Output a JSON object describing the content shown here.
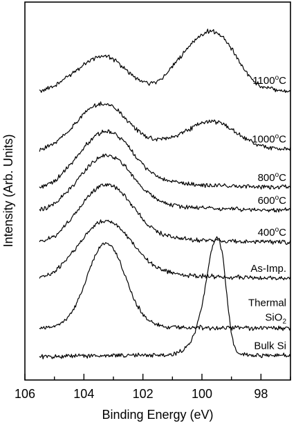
{
  "chart_data": {
    "type": "line",
    "xlabel": "Binding Energy (eV)",
    "ylabel": "Intensity (Arb. Units)",
    "xlim": [
      106,
      97
    ],
    "x_direction": "reversed",
    "x_ticks": [
      "106",
      "104",
      "102",
      "100",
      "98"
    ],
    "x_tick_values": [
      106,
      104,
      102,
      100,
      98
    ],
    "y_ticks": "none",
    "grid": false,
    "legend": "none",
    "curve_labels_placement": "right-of-curve",
    "series": [
      {
        "name": "1100",
        "label_main": "1100",
        "label_degree": "o",
        "label_tail": "C",
        "offset": 7.0,
        "x": [
          105.5,
          105,
          104.5,
          104,
          103.8,
          103.6,
          103.4,
          103.2,
          103,
          102.8,
          102.6,
          102.4,
          102.2,
          102,
          101.8,
          101.6,
          101.4,
          101.2,
          101,
          100.8,
          100.6,
          100.4,
          100.2,
          100,
          99.8,
          99.6,
          99.4,
          99.2,
          99,
          98.8,
          98.6,
          98.4,
          98.2,
          98,
          97.6,
          97.2,
          97
        ],
        "y": [
          0.05,
          0.18,
          0.45,
          0.76,
          0.86,
          0.93,
          0.97,
          0.95,
          0.88,
          0.77,
          0.63,
          0.49,
          0.37,
          0.29,
          0.26,
          0.28,
          0.36,
          0.5,
          0.68,
          0.88,
          1.08,
          1.27,
          1.43,
          1.55,
          1.62,
          1.62,
          1.55,
          1.4,
          1.18,
          0.92,
          0.66,
          0.44,
          0.28,
          0.18,
          0.1,
          0.06,
          0.05
        ]
      },
      {
        "name": "1000",
        "label_main": "1000",
        "label_degree": "o",
        "label_tail": "C",
        "offset": 5.45,
        "x": [
          105.5,
          105,
          104.5,
          104,
          103.8,
          103.6,
          103.4,
          103.2,
          103,
          102.8,
          102.6,
          102.4,
          102.2,
          102,
          101.8,
          101.6,
          101.4,
          101.2,
          101,
          100.8,
          100.6,
          100.4,
          100.2,
          100,
          99.8,
          99.6,
          99.4,
          99.2,
          99,
          98.8,
          98.6,
          98.4,
          98.2,
          98,
          97.6,
          97.2,
          97
        ],
        "y": [
          0.05,
          0.2,
          0.55,
          1.0,
          1.13,
          1.22,
          1.26,
          1.25,
          1.18,
          1.05,
          0.88,
          0.71,
          0.56,
          0.44,
          0.36,
          0.32,
          0.32,
          0.34,
          0.38,
          0.44,
          0.52,
          0.6,
          0.68,
          0.74,
          0.78,
          0.79,
          0.76,
          0.69,
          0.59,
          0.48,
          0.37,
          0.28,
          0.2,
          0.15,
          0.09,
          0.06,
          0.05
        ]
      },
      {
        "name": "800",
        "label_main": "800",
        "label_degree": "o",
        "label_tail": "C",
        "offset": 4.45,
        "x": [
          105.5,
          105,
          104.5,
          104,
          103.8,
          103.6,
          103.4,
          103.2,
          103,
          102.8,
          102.6,
          102.4,
          102.2,
          102,
          101.8,
          101.6,
          101.4,
          101.2,
          101,
          100.8,
          100.6,
          100.4,
          100.2,
          100,
          99.6,
          99.2,
          98.8,
          98.4,
          98,
          97.6,
          97
        ],
        "y": [
          0.05,
          0.2,
          0.6,
          1.1,
          1.28,
          1.42,
          1.5,
          1.52,
          1.48,
          1.38,
          1.22,
          1.03,
          0.83,
          0.65,
          0.5,
          0.38,
          0.29,
          0.23,
          0.19,
          0.16,
          0.14,
          0.13,
          0.12,
          0.11,
          0.1,
          0.09,
          0.08,
          0.07,
          0.06,
          0.05,
          0.05
        ]
      },
      {
        "name": "600",
        "label_main": "600",
        "label_degree": "o",
        "label_tail": "C",
        "offset": 3.85,
        "x": [
          105.5,
          105,
          104.5,
          104,
          103.8,
          103.6,
          103.4,
          103.2,
          103,
          102.8,
          102.6,
          102.4,
          102.2,
          102,
          101.8,
          101.6,
          101.4,
          101.2,
          101,
          100.8,
          100.6,
          100.4,
          100.2,
          100,
          99.6,
          99.2,
          98.8,
          98.4,
          98,
          97.6,
          97
        ],
        "y": [
          0.05,
          0.2,
          0.58,
          1.05,
          1.24,
          1.38,
          1.47,
          1.5,
          1.46,
          1.36,
          1.2,
          1.01,
          0.81,
          0.63,
          0.48,
          0.37,
          0.28,
          0.22,
          0.18,
          0.15,
          0.13,
          0.12,
          0.11,
          0.1,
          0.09,
          0.08,
          0.07,
          0.06,
          0.05,
          0.05,
          0.05
        ]
      },
      {
        "name": "400",
        "label_main": "400",
        "label_degree": "o",
        "label_tail": "C",
        "offset": 3.0,
        "x": [
          105.5,
          105,
          104.5,
          104,
          103.8,
          103.6,
          103.4,
          103.2,
          103,
          102.8,
          102.6,
          102.4,
          102.2,
          102,
          101.8,
          101.6,
          101.4,
          101.2,
          101,
          100.8,
          100.6,
          100.4,
          100.2,
          100,
          99.6,
          99.2,
          98.8,
          98.4,
          98,
          97.6,
          97
        ],
        "y": [
          0.05,
          0.2,
          0.6,
          1.1,
          1.3,
          1.45,
          1.55,
          1.58,
          1.54,
          1.43,
          1.26,
          1.06,
          0.85,
          0.66,
          0.5,
          0.38,
          0.29,
          0.22,
          0.18,
          0.15,
          0.13,
          0.12,
          0.11,
          0.1,
          0.09,
          0.08,
          0.07,
          0.06,
          0.05,
          0.05,
          0.05
        ]
      },
      {
        "name": "As-Imp.",
        "label_main": "As-Imp.",
        "label_degree": "",
        "label_tail": "",
        "offset": 2.05,
        "x": [
          105.5,
          105,
          104.5,
          104,
          103.8,
          103.6,
          103.4,
          103.2,
          103,
          102.8,
          102.6,
          102.4,
          102.2,
          102,
          101.8,
          101.6,
          101.4,
          101.2,
          101,
          100.8,
          100.6,
          100.4,
          100.2,
          100,
          99.6,
          99.2,
          98.8,
          98.4,
          98,
          97.6,
          97
        ],
        "y": [
          0.05,
          0.2,
          0.62,
          1.12,
          1.32,
          1.46,
          1.55,
          1.57,
          1.52,
          1.4,
          1.22,
          1.02,
          0.82,
          0.64,
          0.49,
          0.37,
          0.28,
          0.22,
          0.18,
          0.15,
          0.13,
          0.12,
          0.11,
          0.1,
          0.09,
          0.08,
          0.07,
          0.06,
          0.05,
          0.05,
          0.05
        ]
      },
      {
        "name": "Thermal SiO2",
        "label_main": "Thermal",
        "label_line2": "SiO",
        "label_sub": "2",
        "label_degree": "",
        "label_tail": "",
        "offset": 0.75,
        "x": [
          105.5,
          105,
          104.6,
          104.4,
          104.2,
          104,
          103.8,
          103.6,
          103.4,
          103.2,
          103,
          102.8,
          102.6,
          102.4,
          102.2,
          102,
          101.8,
          101.6,
          101.4,
          101.2,
          101,
          100.8,
          100.6,
          100.4,
          100.2,
          100,
          99.6,
          99.2,
          98.8,
          98.4,
          98,
          97.6,
          97
        ],
        "y": [
          0.02,
          0.08,
          0.25,
          0.45,
          0.75,
          1.15,
          1.6,
          2.0,
          2.25,
          2.28,
          2.12,
          1.8,
          1.4,
          0.98,
          0.64,
          0.38,
          0.22,
          0.13,
          0.08,
          0.06,
          0.05,
          0.05,
          0.04,
          0.04,
          0.04,
          0.04,
          0.03,
          0.03,
          0.03,
          0.02,
          0.02,
          0.02,
          0.02
        ]
      },
      {
        "name": "Bulk Si",
        "label_main": "Bulk Si",
        "label_degree": "",
        "label_tail": "",
        "offset": 0.0,
        "x": [
          105.5,
          104.5,
          103.5,
          102.5,
          101.5,
          101,
          100.8,
          100.6,
          100.4,
          100.2,
          100,
          99.9,
          99.8,
          99.7,
          99.6,
          99.5,
          99.4,
          99.3,
          99.2,
          99.1,
          99.0,
          98.9,
          98.8,
          98.6,
          98.4,
          98.2,
          98,
          97.6,
          97
        ],
        "y": [
          0.02,
          0.03,
          0.04,
          0.05,
          0.06,
          0.08,
          0.12,
          0.2,
          0.38,
          0.75,
          1.35,
          1.8,
          2.3,
          2.75,
          3.05,
          3.18,
          3.1,
          2.7,
          2.0,
          1.2,
          0.6,
          0.28,
          0.14,
          0.08,
          0.06,
          0.05,
          0.05,
          0.05,
          0.05
        ]
      }
    ]
  }
}
